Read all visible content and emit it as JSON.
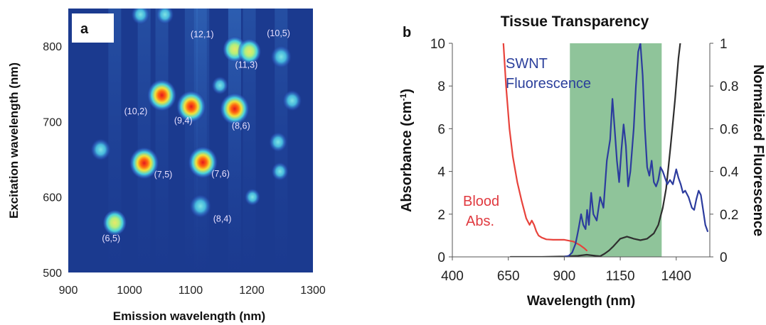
{
  "chart_data": [
    {
      "type": "heatmap",
      "panel_label": "a",
      "xlabel": "Emission wavelength (nm)",
      "ylabel": "Excitation wavelength (nm)",
      "xlim": [
        900,
        1300
      ],
      "ylim": [
        500,
        850
      ],
      "x_ticks": [
        900,
        1000,
        1100,
        1200,
        1300
      ],
      "y_ticks": [
        500,
        600,
        700,
        800
      ],
      "grid": false,
      "peaks": [
        {
          "label": "(6,5)",
          "x": 976,
          "y": 566,
          "intensity": 0.62
        },
        {
          "label": "(7,5)",
          "x": 1024,
          "y": 645,
          "intensity": 1.0
        },
        {
          "label": "(10,2)",
          "x": 1053,
          "y": 735,
          "intensity": 1.0
        },
        {
          "label": "(9,4)",
          "x": 1101,
          "y": 720,
          "intensity": 1.0
        },
        {
          "label": "(7,6)",
          "x": 1120,
          "y": 646,
          "intensity": 1.0
        },
        {
          "label": "(8,4)",
          "x": 1116,
          "y": 588,
          "intensity": 0.5
        },
        {
          "label": "(8,6)",
          "x": 1172,
          "y": 717,
          "intensity": 1.0
        },
        {
          "label": "(12,1)",
          "x": 1172,
          "y": 796,
          "intensity": 0.62
        },
        {
          "label": "(11,3)",
          "x": 1196,
          "y": 793,
          "intensity": 0.6
        },
        {
          "label": "(10,5)",
          "x": 1248,
          "y": 786,
          "intensity": 0.45
        },
        {
          "label": "",
          "x": 953,
          "y": 663,
          "intensity": 0.4
        },
        {
          "label": "",
          "x": 1266,
          "y": 728,
          "intensity": 0.35
        },
        {
          "label": "",
          "x": 1243,
          "y": 673,
          "intensity": 0.28
        },
        {
          "label": "",
          "x": 1246,
          "y": 634,
          "intensity": 0.2
        },
        {
          "label": "",
          "x": 1148,
          "y": 748,
          "intensity": 0.18
        },
        {
          "label": "",
          "x": 1201,
          "y": 600,
          "intensity": 0.12
        },
        {
          "label": "",
          "x": 1018,
          "y": 842,
          "intensity": 0.3
        },
        {
          "label": "",
          "x": 1058,
          "y": 842,
          "intensity": 0.25
        }
      ],
      "colors": {
        "background": "#1b3a8f",
        "low": "#2f63c6",
        "mid": "#49d2de",
        "high": "#f0e23a",
        "peak": "#e4181e"
      }
    },
    {
      "type": "line",
      "panel_label": "b",
      "title": "Tissue Transparency",
      "xlabel": "Wavelength (nm)",
      "ylabel": "Absorbance (cm",
      "ylabel_superscript": "-1",
      "ylabel_suffix": ")",
      "y2label": "Normalized Fluorescence",
      "xlim": [
        400,
        1550
      ],
      "ylim": [
        0,
        10
      ],
      "y2lim": [
        0,
        1
      ],
      "x_ticks": [
        400,
        650,
        900,
        1150,
        1400
      ],
      "y_ticks": [
        0,
        2,
        4,
        6,
        8,
        10
      ],
      "y2_ticks": [
        "0",
        "0.2",
        "0.4",
        "0.6",
        "0.8",
        "1"
      ],
      "grid": false,
      "transparency_window": {
        "x_start": 925,
        "x_end": 1335,
        "color": "#8fc49a"
      },
      "annotations": [
        {
          "text": "SWNT",
          "color": "#2b3f9b"
        },
        {
          "text": "Fluorescence",
          "color": "#2b3f9b"
        },
        {
          "text": "Blood",
          "color": "#e0393f"
        },
        {
          "text": "Abs.",
          "color": "#e0393f"
        }
      ],
      "series": [
        {
          "color": "#e8433c",
          "axis": "left",
          "x": [
            628,
            640,
            655,
            670,
            690,
            710,
            730,
            745,
            755,
            765,
            775,
            785,
            800,
            820,
            850,
            900,
            940,
            970,
            990,
            1000
          ],
          "y": [
            10,
            8.0,
            6.0,
            4.7,
            3.5,
            2.6,
            1.8,
            1.5,
            1.7,
            1.5,
            1.2,
            1.0,
            0.9,
            0.82,
            0.8,
            0.8,
            0.72,
            0.55,
            0.4,
            0.3
          ]
        },
        {
          "color": "#2c3c9e",
          "axis": "right",
          "x": [
            900,
            920,
            935,
            950,
            958,
            965,
            975,
            985,
            995,
            1002,
            1010,
            1020,
            1030,
            1045,
            1060,
            1075,
            1090,
            1105,
            1115,
            1125,
            1135,
            1145,
            1155,
            1165,
            1175,
            1185,
            1195,
            1210,
            1220,
            1230,
            1240,
            1250,
            1260,
            1270,
            1280,
            1290,
            1300,
            1310,
            1320,
            1330,
            1340,
            1350,
            1360,
            1372,
            1385,
            1400,
            1410,
            1420,
            1430,
            1440,
            1455,
            1470,
            1480,
            1490,
            1500,
            1510,
            1520,
            1530,
            1540
          ],
          "y": [
            0,
            0.005,
            0.02,
            0.06,
            0.1,
            0.14,
            0.2,
            0.15,
            0.13,
            0.22,
            0.15,
            0.3,
            0.2,
            0.17,
            0.28,
            0.23,
            0.45,
            0.55,
            0.74,
            0.6,
            0.45,
            0.35,
            0.5,
            0.62,
            0.52,
            0.33,
            0.4,
            0.6,
            0.8,
            0.96,
            1.0,
            0.85,
            0.6,
            0.42,
            0.38,
            0.45,
            0.35,
            0.33,
            0.36,
            0.42,
            0.4,
            0.37,
            0.34,
            0.36,
            0.34,
            0.41,
            0.37,
            0.34,
            0.3,
            0.31,
            0.28,
            0.23,
            0.22,
            0.27,
            0.31,
            0.29,
            0.22,
            0.15,
            0.12
          ]
        },
        {
          "color": "#2f2f2f",
          "axis": "left",
          "x": [
            660,
            700,
            800,
            900,
            960,
            1000,
            1040,
            1060,
            1080,
            1100,
            1120,
            1150,
            1180,
            1210,
            1240,
            1270,
            1300,
            1320,
            1340,
            1355,
            1365,
            1375,
            1385,
            1395,
            1402,
            1410,
            1418
          ],
          "y": [
            0,
            0,
            0,
            0.02,
            0.05,
            0.1,
            0.05,
            0.03,
            0.15,
            0.3,
            0.5,
            0.85,
            0.95,
            0.85,
            0.78,
            0.85,
            1.1,
            1.5,
            2.3,
            3.2,
            4.2,
            5.2,
            6.3,
            7.4,
            8.3,
            9.3,
            10
          ]
        }
      ]
    }
  ]
}
